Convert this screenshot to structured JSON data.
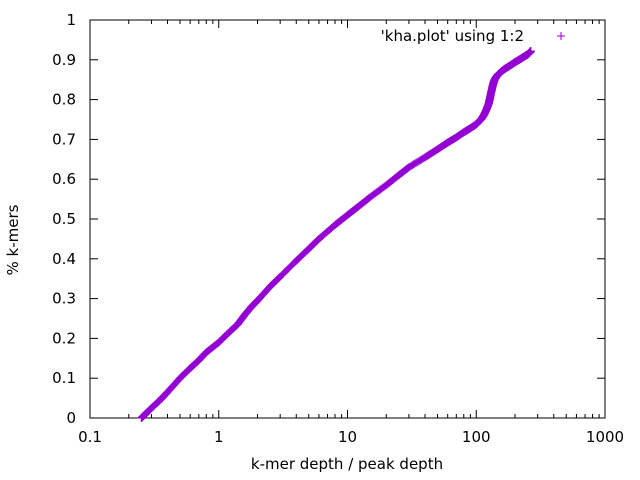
{
  "chart_data": {
    "type": "scatter",
    "title": "",
    "xlabel": "k-mer depth / peak depth",
    "ylabel": "% k-mers",
    "x_scale": "log",
    "xlim": [
      0.1,
      1000
    ],
    "ylim": [
      0,
      1
    ],
    "x_ticks": [
      "0.1",
      "1",
      "10",
      "100",
      "1000"
    ],
    "y_ticks": [
      "0",
      "0.1",
      "0.2",
      "0.3",
      "0.4",
      "0.5",
      "0.6",
      "0.7",
      "0.8",
      "0.9",
      "1"
    ],
    "grid": false,
    "legend_position": "top-right",
    "series": [
      {
        "name": "'kha.plot' using 1:2",
        "color": "#9400d3",
        "marker": "plus",
        "x": [
          0.25,
          0.27,
          0.3,
          0.35,
          0.4,
          0.5,
          0.6,
          0.7,
          0.8,
          1.0,
          1.2,
          1.4,
          1.6,
          1.8,
          2.0,
          2.5,
          3.0,
          4.0,
          5.0,
          6.0,
          8.0,
          10,
          12,
          15,
          20,
          25,
          30,
          40,
          50,
          60,
          70,
          80,
          90,
          100,
          105,
          110,
          115,
          120,
          125,
          128,
          131,
          134,
          137,
          140,
          143,
          146,
          150,
          155,
          160,
          170,
          180,
          190,
          200,
          210,
          220,
          230,
          240,
          250,
          255,
          260,
          262,
          265
        ],
        "y": [
          0.0,
          0.01,
          0.025,
          0.045,
          0.065,
          0.1,
          0.125,
          0.145,
          0.165,
          0.19,
          0.215,
          0.235,
          0.26,
          0.28,
          0.295,
          0.33,
          0.355,
          0.395,
          0.425,
          0.45,
          0.485,
          0.51,
          0.53,
          0.555,
          0.585,
          0.61,
          0.63,
          0.655,
          0.675,
          0.692,
          0.705,
          0.718,
          0.728,
          0.738,
          0.745,
          0.752,
          0.762,
          0.775,
          0.79,
          0.805,
          0.82,
          0.834,
          0.845,
          0.852,
          0.857,
          0.861,
          0.865,
          0.869,
          0.873,
          0.879,
          0.884,
          0.889,
          0.894,
          0.898,
          0.902,
          0.906,
          0.91,
          0.913,
          0.916,
          0.918,
          0.92,
          0.922
        ]
      }
    ]
  }
}
